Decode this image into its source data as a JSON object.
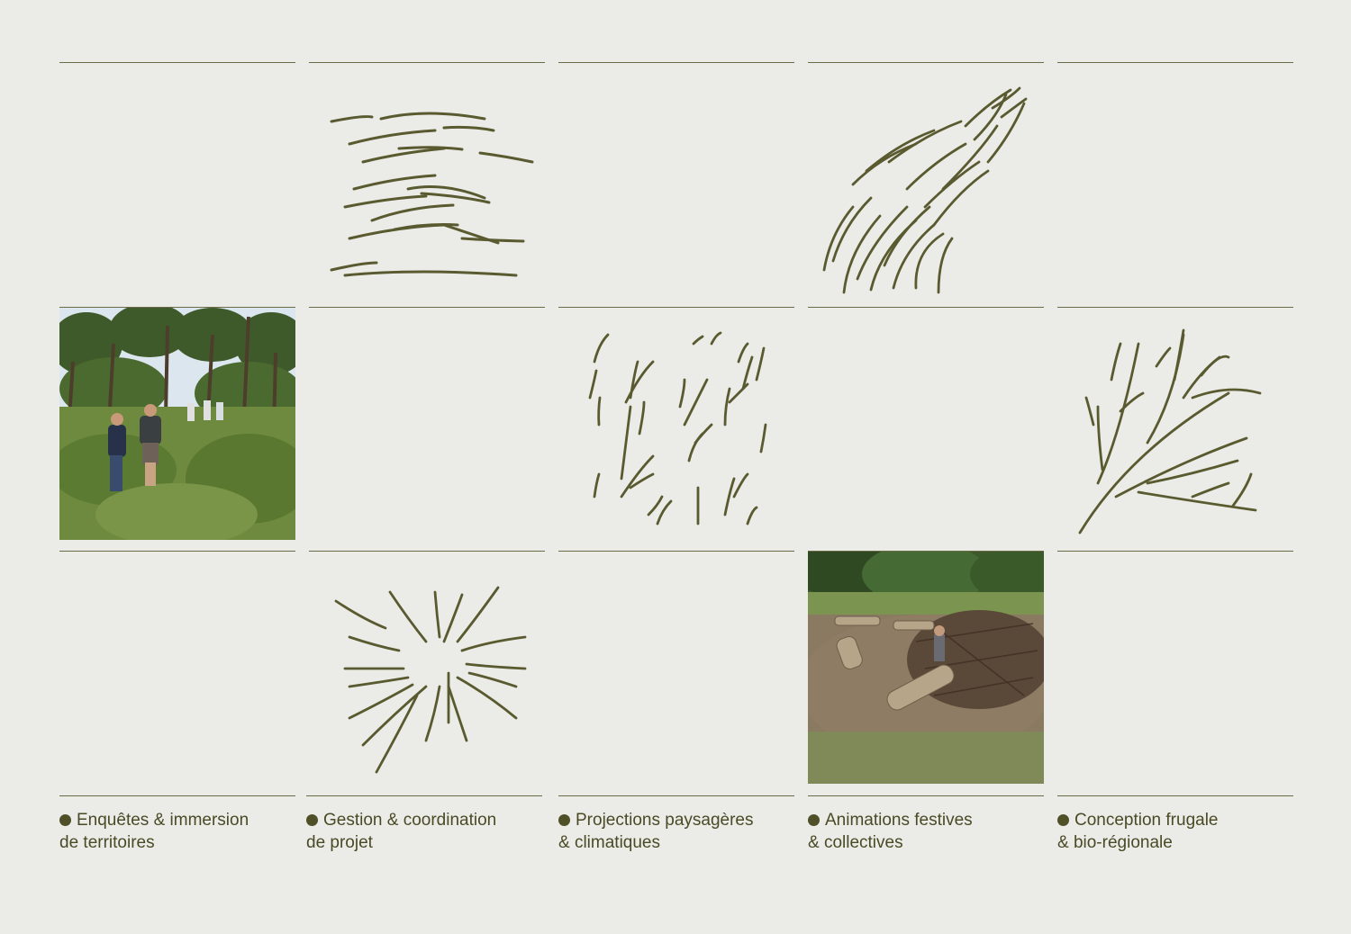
{
  "columns": [
    {
      "bullet": "dot",
      "line1": "Enquêtes & immersion",
      "line2": "de territoires"
    },
    {
      "bullet": "dot",
      "line1": "Gestion & coordination",
      "line2": "de projet"
    },
    {
      "bullet": "dot",
      "line1": "Projections paysagères",
      "line2": "& climatiques"
    },
    {
      "bullet": "dot",
      "line1": "Animations festives",
      "line2": "& collectives"
    },
    {
      "bullet": "dot",
      "line1": "Conception frugale",
      "line2": "& bio-régionale"
    }
  ],
  "colors": {
    "background": "#ebece7",
    "ink": "#4a4a26",
    "stroke": "#5a5a30"
  },
  "images": [
    {
      "name": "forest-walk-photo",
      "depicts": "people walking in a pine forest meadow"
    },
    {
      "name": "log-bench-photo",
      "depicts": "logs and branches laid in a grassy clearing"
    }
  ]
}
